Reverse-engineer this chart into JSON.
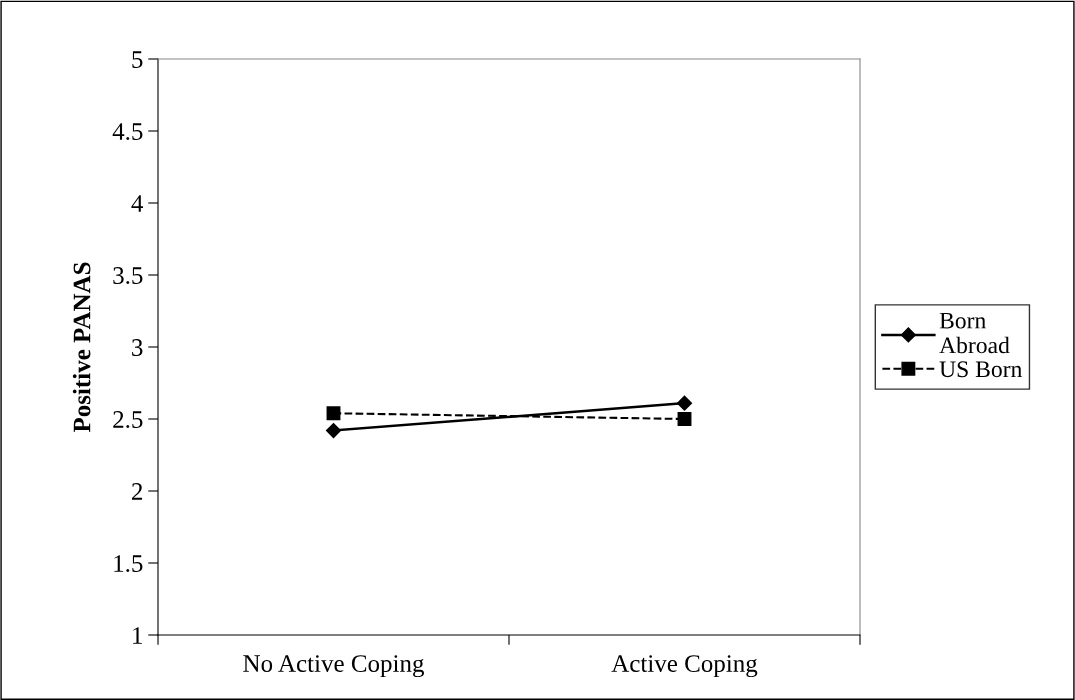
{
  "chart_data": {
    "type": "line",
    "ylabel": "Positive PANAS",
    "categories": [
      "No Active Coping",
      "Active Coping"
    ],
    "series": [
      {
        "name": "Born Abroad",
        "color": "#000000",
        "values": [
          2.42,
          2.61
        ],
        "marker": "diamond",
        "line_style": "solid"
      },
      {
        "name": "US Born",
        "color": "#000000",
        "values": [
          2.54,
          2.5
        ],
        "marker": "square",
        "line_style": "dashed"
      }
    ],
    "ylim": [
      1,
      5
    ],
    "yticks": [
      1,
      1.5,
      2,
      2.5,
      3,
      3.5,
      4,
      4.5,
      5
    ],
    "grid": false,
    "legend": "right"
  }
}
